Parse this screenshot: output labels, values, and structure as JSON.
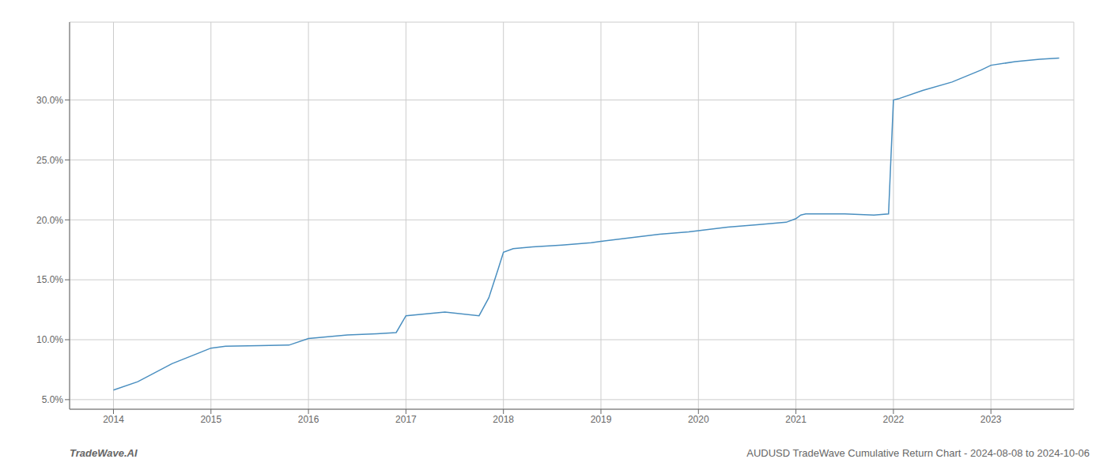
{
  "chart_data": {
    "type": "line",
    "title": "AUDUSD TradeWave Cumulative Return Chart - 2024-08-08 to 2024-10-06",
    "annotations": [
      "TradeWave.AI"
    ],
    "color": "#4a8fc0",
    "grid": true,
    "x": [
      2014.0,
      2014.25,
      2014.6,
      2015.0,
      2015.15,
      2015.5,
      2015.8,
      2016.0,
      2016.4,
      2016.7,
      2016.9,
      2017.0,
      2017.4,
      2017.75,
      2017.85,
      2017.95,
      2018.0,
      2018.1,
      2018.3,
      2018.6,
      2018.9,
      2019.0,
      2019.3,
      2019.6,
      2019.9,
      2020.0,
      2020.3,
      2020.6,
      2020.9,
      2021.0,
      2021.05,
      2021.1,
      2021.5,
      2021.8,
      2021.95,
      2022.0,
      2022.05,
      2022.3,
      2022.6,
      2022.9,
      2023.0,
      2023.25,
      2023.5,
      2023.7
    ],
    "values": [
      5.8,
      6.5,
      8.0,
      9.3,
      9.45,
      9.5,
      9.55,
      10.1,
      10.4,
      10.5,
      10.6,
      12.0,
      12.3,
      12.0,
      13.5,
      16.0,
      17.3,
      17.6,
      17.75,
      17.9,
      18.1,
      18.2,
      18.5,
      18.8,
      19.0,
      19.1,
      19.4,
      19.6,
      19.8,
      20.1,
      20.4,
      20.5,
      20.5,
      20.4,
      20.5,
      30.0,
      30.1,
      30.8,
      31.5,
      32.5,
      32.9,
      33.2,
      33.4,
      33.5
    ],
    "xlim": [
      2013.55,
      2023.85
    ],
    "ylim": [
      4.2,
      36.5
    ],
    "xticks": [
      2014,
      2015,
      2016,
      2017,
      2018,
      2019,
      2020,
      2021,
      2022,
      2023
    ],
    "yticks": [
      {
        "value": 5.0,
        "label": "5.0%"
      },
      {
        "value": 10.0,
        "label": "10.0%"
      },
      {
        "value": 15.0,
        "label": "15.0%"
      },
      {
        "value": 20.0,
        "label": "20.0%"
      },
      {
        "value": 25.0,
        "label": "25.0%"
      },
      {
        "value": 30.0,
        "label": "30.0%"
      }
    ]
  }
}
